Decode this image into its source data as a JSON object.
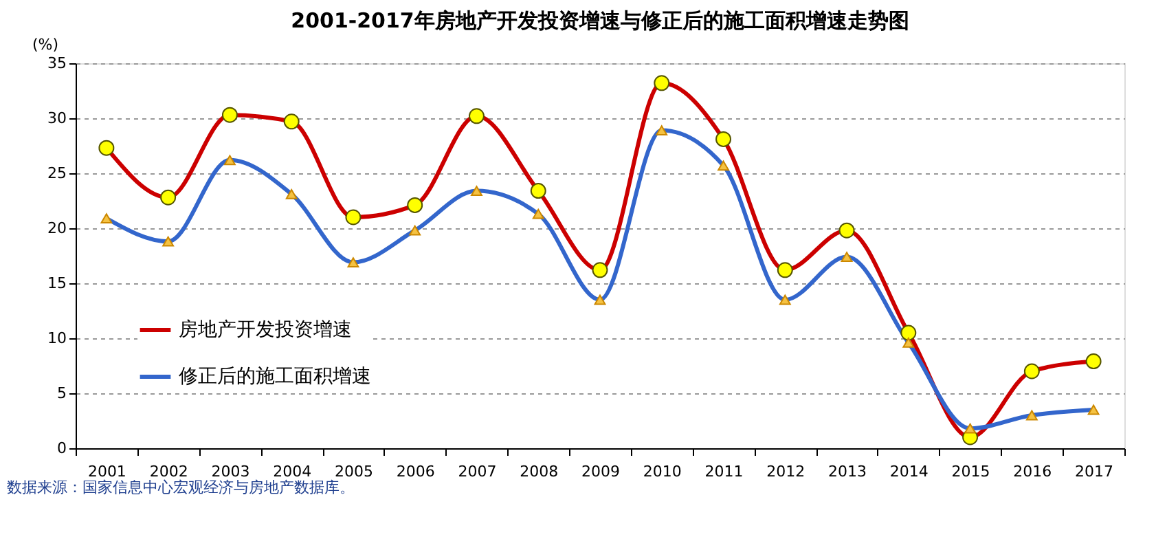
{
  "chart_data": {
    "type": "line",
    "title": "2001-2017年房地产开发投资增速与修正后的施工面积增速走势图",
    "ylabel": "(%)",
    "categories": [
      "2001",
      "2002",
      "2003",
      "2004",
      "2005",
      "2006",
      "2007",
      "2008",
      "2009",
      "2010",
      "2011",
      "2012",
      "2013",
      "2014",
      "2015",
      "2016",
      "2017"
    ],
    "series": [
      {
        "name": "房地产开发投资增速",
        "color": "#cc0000",
        "marker": "circle",
        "values": [
          27.3,
          22.8,
          30.3,
          29.7,
          21.0,
          22.1,
          30.2,
          23.4,
          16.2,
          33.2,
          28.1,
          16.2,
          19.8,
          10.5,
          1.0,
          7.0,
          7.9
        ]
      },
      {
        "name": "修正后的施工面积增速",
        "color": "#3366cc",
        "marker": "triangle",
        "values": [
          20.9,
          18.8,
          26.2,
          23.1,
          16.9,
          19.8,
          23.4,
          21.3,
          13.5,
          28.9,
          25.7,
          13.5,
          17.4,
          9.6,
          1.8,
          3.0,
          3.5
        ]
      }
    ],
    "ylim": [
      0,
      35
    ],
    "yticks": [
      0,
      5,
      10,
      15,
      20,
      25,
      30,
      35
    ],
    "grid": "y",
    "legend": "bottom left",
    "line_style": "solid",
    "annotations": [
      "数据来源：国家信息中心宏观经济与房地产数据库。"
    ]
  }
}
